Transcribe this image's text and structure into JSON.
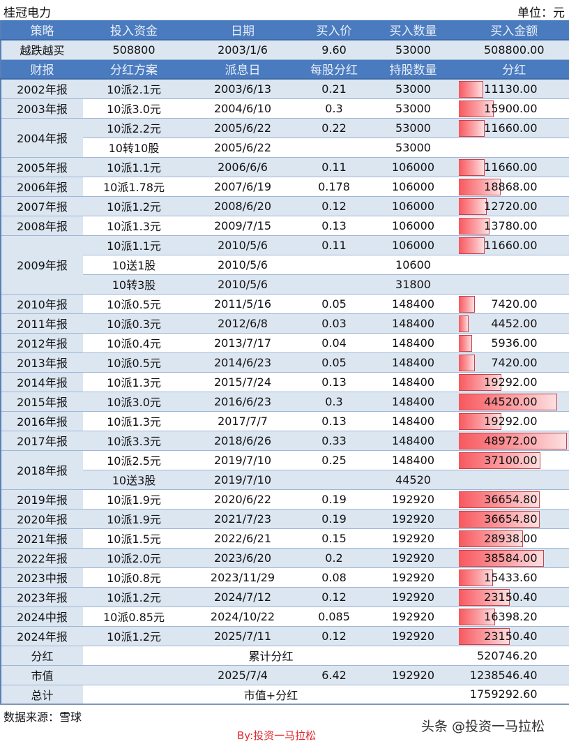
{
  "header": {
    "title": "桂冠电力",
    "unit": "单位：元"
  },
  "purchase": {
    "columns": [
      "策略",
      "投入资金",
      "日期",
      "买入价",
      "买入数量",
      "买入金额"
    ],
    "row": [
      "越跌越买",
      "508800",
      "2003/1/6",
      "9.60",
      "53000",
      "508800.00"
    ]
  },
  "dividends": {
    "columns": [
      "财报",
      "分红方案",
      "派息日",
      "每股分红",
      "持股数量",
      "分红"
    ],
    "bar_max": 48972,
    "rows": [
      {
        "report": "2002年报",
        "plan": "10派2.1元",
        "date": "2003/6/13",
        "per_share": "0.21",
        "shares": "53000",
        "dividend": "11130.00",
        "amount": 11130,
        "span": 1,
        "shade": "blue"
      },
      {
        "report": "2003年报",
        "plan": "10派3.0元",
        "date": "2004/6/10",
        "per_share": "0.3",
        "shares": "53000",
        "dividend": "15900.00",
        "amount": 15900,
        "span": 1,
        "shade": "white"
      },
      {
        "report": "2004年报",
        "plan": "10派2.2元",
        "date": "2005/6/22",
        "per_share": "0.22",
        "shares": "53000",
        "dividend": "11660.00",
        "amount": 11660,
        "span": 2,
        "shade": "blue"
      },
      {
        "report": "",
        "plan": "10转10股",
        "date": "2005/6/22",
        "per_share": "",
        "shares": "53000",
        "dividend": "",
        "amount": 0,
        "span": 0,
        "shade": "white"
      },
      {
        "report": "2005年报",
        "plan": "10派1.1元",
        "date": "2006/6/6",
        "per_share": "0.11",
        "shares": "106000",
        "dividend": "11660.00",
        "amount": 11660,
        "span": 1,
        "shade": "blue"
      },
      {
        "report": "2006年报",
        "plan": "10派1.78元",
        "date": "2007/6/19",
        "per_share": "0.178",
        "shares": "106000",
        "dividend": "18868.00",
        "amount": 18868,
        "span": 1,
        "shade": "white"
      },
      {
        "report": "2007年报",
        "plan": "10派1.2元",
        "date": "2008/6/20",
        "per_share": "0.12",
        "shares": "106000",
        "dividend": "12720.00",
        "amount": 12720,
        "span": 1,
        "shade": "blue"
      },
      {
        "report": "2008年报",
        "plan": "10派1.3元",
        "date": "2009/7/15",
        "per_share": "0.13",
        "shares": "106000",
        "dividend": "13780.00",
        "amount": 13780,
        "span": 1,
        "shade": "white"
      },
      {
        "report": "2009年报",
        "plan": "10派1.1元",
        "date": "2010/5/6",
        "per_share": "0.11",
        "shares": "106000",
        "dividend": "11660.00",
        "amount": 11660,
        "span": 3,
        "shade": "blue"
      },
      {
        "report": "",
        "plan": "10送1股",
        "date": "2010/5/6",
        "per_share": "",
        "shares": "10600",
        "dividend": "",
        "amount": 0,
        "span": 0,
        "shade": "white"
      },
      {
        "report": "",
        "plan": "10转3股",
        "date": "2010/5/6",
        "per_share": "",
        "shares": "31800",
        "dividend": "",
        "amount": 0,
        "span": 0,
        "shade": "blue"
      },
      {
        "report": "2010年报",
        "plan": "10派0.5元",
        "date": "2011/5/16",
        "per_share": "0.05",
        "shares": "148400",
        "dividend": "7420.00",
        "amount": 7420,
        "span": 1,
        "shade": "white"
      },
      {
        "report": "2011年报",
        "plan": "10派0.3元",
        "date": "2012/6/8",
        "per_share": "0.03",
        "shares": "148400",
        "dividend": "4452.00",
        "amount": 4452,
        "span": 1,
        "shade": "blue"
      },
      {
        "report": "2012年报",
        "plan": "10派0.4元",
        "date": "2013/7/17",
        "per_share": "0.04",
        "shares": "148400",
        "dividend": "5936.00",
        "amount": 5936,
        "span": 1,
        "shade": "white"
      },
      {
        "report": "2013年报",
        "plan": "10派0.5元",
        "date": "2014/6/23",
        "per_share": "0.05",
        "shares": "148400",
        "dividend": "7420.00",
        "amount": 7420,
        "span": 1,
        "shade": "blue"
      },
      {
        "report": "2014年报",
        "plan": "10派1.3元",
        "date": "2015/7/24",
        "per_share": "0.13",
        "shares": "148400",
        "dividend": "19292.00",
        "amount": 19292,
        "span": 1,
        "shade": "white"
      },
      {
        "report": "2015年报",
        "plan": "10派3.0元",
        "date": "2016/6/23",
        "per_share": "0.3",
        "shares": "148400",
        "dividend": "44520.00",
        "amount": 44520,
        "span": 1,
        "shade": "blue"
      },
      {
        "report": "2016年报",
        "plan": "10派1.3元",
        "date": "2017/7/7",
        "per_share": "0.13",
        "shares": "148400",
        "dividend": "19292.00",
        "amount": 19292,
        "span": 1,
        "shade": "white"
      },
      {
        "report": "2017年报",
        "plan": "10派3.3元",
        "date": "2018/6/26",
        "per_share": "0.33",
        "shares": "148400",
        "dividend": "48972.00",
        "amount": 48972,
        "span": 1,
        "shade": "blue"
      },
      {
        "report": "2018年报",
        "plan": "10派2.5元",
        "date": "2019/7/10",
        "per_share": "0.25",
        "shares": "148400",
        "dividend": "37100.00",
        "amount": 37100,
        "span": 2,
        "shade": "white"
      },
      {
        "report": "",
        "plan": "10送3股",
        "date": "2019/7/10",
        "per_share": "",
        "shares": "44520",
        "dividend": "",
        "amount": 0,
        "span": 0,
        "shade": "blue"
      },
      {
        "report": "2019年报",
        "plan": "10派1.9元",
        "date": "2020/6/22",
        "per_share": "0.19",
        "shares": "192920",
        "dividend": "36654.80",
        "amount": 36654.8,
        "span": 1,
        "shade": "white"
      },
      {
        "report": "2020年报",
        "plan": "10派1.9元",
        "date": "2021/7/23",
        "per_share": "0.19",
        "shares": "192920",
        "dividend": "36654.80",
        "amount": 36654.8,
        "span": 1,
        "shade": "blue"
      },
      {
        "report": "2021年报",
        "plan": "10派1.5元",
        "date": "2022/6/21",
        "per_share": "0.15",
        "shares": "192920",
        "dividend": "28938.00",
        "amount": 28938,
        "span": 1,
        "shade": "white"
      },
      {
        "report": "2022年报",
        "plan": "10派2.0元",
        "date": "2023/6/20",
        "per_share": "0.2",
        "shares": "192920",
        "dividend": "38584.00",
        "amount": 38584,
        "span": 1,
        "shade": "blue"
      },
      {
        "report": "2023中报",
        "plan": "10派0.8元",
        "date": "2023/11/29",
        "per_share": "0.08",
        "shares": "192920",
        "dividend": "15433.60",
        "amount": 15433.6,
        "span": 1,
        "shade": "white"
      },
      {
        "report": "2023年报",
        "plan": "10派1.2元",
        "date": "2024/7/12",
        "per_share": "0.12",
        "shares": "192920",
        "dividend": "23150.40",
        "amount": 23150.4,
        "span": 1,
        "shade": "blue"
      },
      {
        "report": "2024中报",
        "plan": "10派0.85元",
        "date": "2024/10/22",
        "per_share": "0.085",
        "shares": "192920",
        "dividend": "16398.20",
        "amount": 16398.2,
        "span": 1,
        "shade": "white"
      },
      {
        "report": "2024年报",
        "plan": "10派1.2元",
        "date": "2025/7/11",
        "per_share": "0.12",
        "shares": "192920",
        "dividend": "23150.40",
        "amount": 23150.4,
        "span": 1,
        "shade": "blue"
      }
    ]
  },
  "summary": {
    "dividend": {
      "label": "分红",
      "desc": "累计分红",
      "value": "520746.20"
    },
    "market_value": {
      "label": "市值",
      "date": "2025/7/4",
      "price": "6.42",
      "shares": "192920",
      "value": "1238546.40"
    },
    "total": {
      "label": "总计",
      "desc": "市值+分红",
      "value": "1759292.60"
    }
  },
  "footer": {
    "source": "数据来源：雪球",
    "byline": "By:投资一马拉松",
    "watermark": "头条 @投资一马拉松"
  },
  "colors": {
    "header_bg": "#4a7bbf",
    "row_blue": "#dce6f1",
    "bar": "#f7585e",
    "byline": "#e0262b"
  }
}
